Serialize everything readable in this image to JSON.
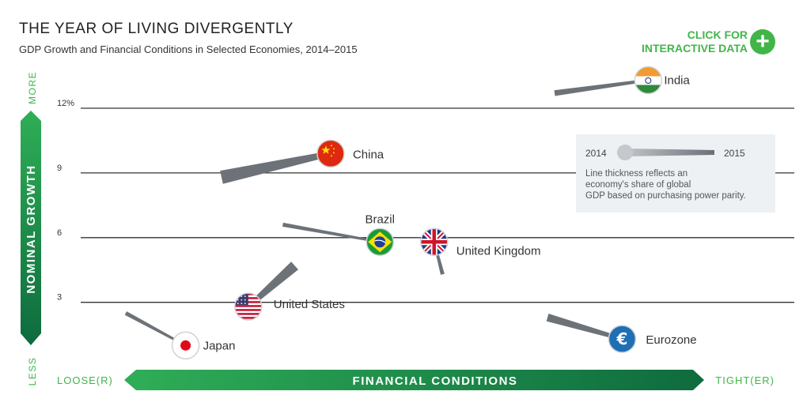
{
  "header": {
    "title": "THE YEAR OF LIVING DIVERGENTLY",
    "subtitle": "GDP Growth and Financial Conditions in Selected Economies, 2014–2015",
    "cta_line1": "CLICK FOR",
    "cta_line2": "INTERACTIVE DATA",
    "cta_icon": "plus-icon"
  },
  "colors": {
    "green": "#42b549",
    "dark_green": "#0e6b3e",
    "gray_line": "#777777",
    "legend_bg": "#eef1f3"
  },
  "chart_data": {
    "type": "scatter",
    "title": "THE YEAR OF LIVING DIVERGENTLY",
    "subtitle": "GDP Growth and Financial Conditions in Selected Economies, 2014–2015",
    "ylabel": "NOMINAL GROWTH",
    "y_more_label": "MORE",
    "y_less_label": "LESS",
    "xlabel": "FINANCIAL CONDITIONS",
    "x_left_label": "LOOSE(R)",
    "x_right_label": "TIGHT(ER)",
    "ylim": [
      0,
      13
    ],
    "xlim": [
      0,
      100
    ],
    "y_ticks": [
      {
        "value": 12,
        "label": "12%"
      },
      {
        "value": 9,
        "label": "9"
      },
      {
        "value": 6,
        "label": "6"
      },
      {
        "value": 3,
        "label": "3"
      }
    ],
    "grid": true,
    "legend": {
      "start_label": "2014",
      "end_label": "2015",
      "note": "Line thickness reflects an economy's share of global GDP based on purchasing power parity.",
      "placement": "right"
    },
    "series": [
      {
        "name": "India",
        "flag": "india-flag",
        "x2014": 66.4,
        "y2014": 12.7,
        "x2015": 79.7,
        "y2015": 13.3,
        "weight": 0.3
      },
      {
        "name": "China",
        "flag": "china-flag",
        "x2014": 19.1,
        "y2014": 8.8,
        "x2015": 34.6,
        "y2015": 9.9,
        "weight": 1.0
      },
      {
        "name": "Brazil",
        "flag": "brazil-flag",
        "x2014": 27.8,
        "y2014": 6.6,
        "x2015": 41.6,
        "y2015": 5.8,
        "weight": 0.15
      },
      {
        "name": "United Kingdom",
        "flag": "uk-flag",
        "x2014": 50.5,
        "y2014": 4.3,
        "x2015": 49.3,
        "y2015": 5.8,
        "weight": 0.15
      },
      {
        "name": "United States",
        "flag": "us-flag",
        "x2014": 29.5,
        "y2014": 4.7,
        "x2015": 22.9,
        "y2015": 2.8,
        "weight": 0.75
      },
      {
        "name": "Japan",
        "flag": "japan-flag",
        "x2014": 5.5,
        "y2014": 2.5,
        "x2015": 14.0,
        "y2015": 1.0,
        "weight": 0.15
      },
      {
        "name": "Eurozone",
        "flag": "euro-icon",
        "x2014": 65.4,
        "y2014": 2.3,
        "x2015": 76.0,
        "y2015": 1.3,
        "weight": 0.5
      }
    ]
  }
}
